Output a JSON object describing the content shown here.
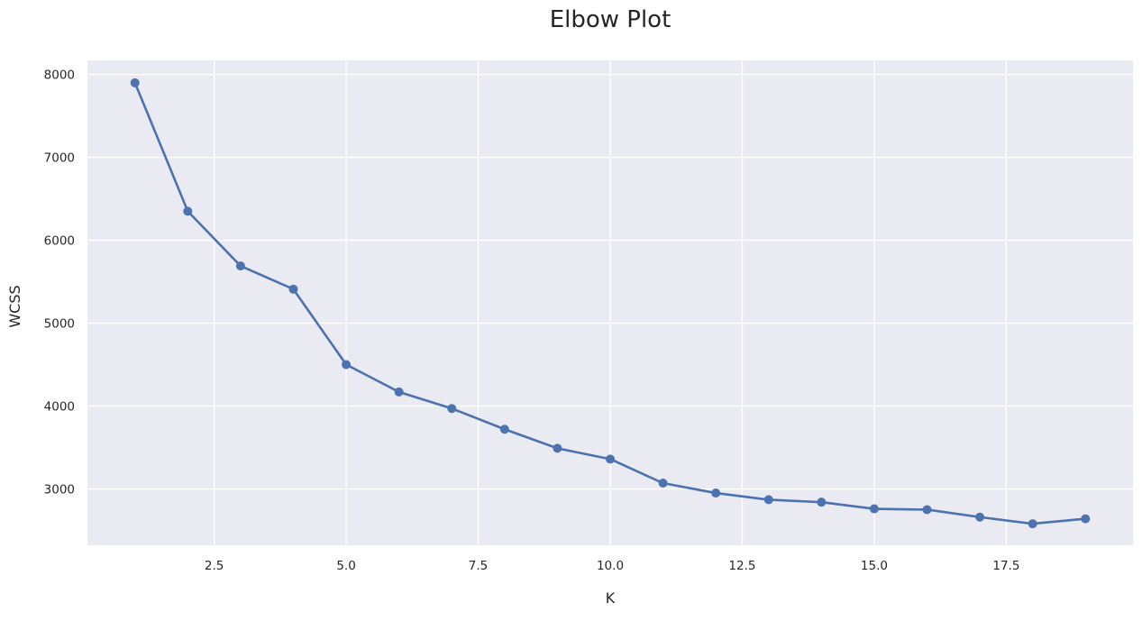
{
  "chart_data": {
    "type": "line",
    "title": "Elbow Plot",
    "xlabel": "K",
    "ylabel": "WCSS",
    "x": [
      1,
      2,
      3,
      4,
      5,
      6,
      7,
      8,
      9,
      10,
      11,
      12,
      13,
      14,
      15,
      16,
      17,
      18,
      19
    ],
    "series": [
      {
        "values": [
          7900,
          6350,
          5690,
          5410,
          4500,
          4170,
          3970,
          3720,
          3490,
          3360,
          3070,
          2950,
          2870,
          2840,
          2760,
          2750,
          2660,
          2580,
          2640
        ],
        "color": "#4c72b0"
      }
    ],
    "xlim": [
      0.1,
      19.9
    ],
    "ylim": [
      2320,
      8170
    ],
    "xticks": [
      2.5,
      5.0,
      7.5,
      10.0,
      12.5,
      15.0,
      17.5
    ],
    "xtick_labels": [
      "2.5",
      "5.0",
      "7.5",
      "10.0",
      "12.5",
      "15.0",
      "17.5"
    ],
    "yticks": [
      3000,
      4000,
      5000,
      6000,
      7000,
      8000
    ],
    "ytick_labels": [
      "3000",
      "4000",
      "5000",
      "6000",
      "7000",
      "8000"
    ],
    "grid": true,
    "background": "#eaeaf2"
  }
}
